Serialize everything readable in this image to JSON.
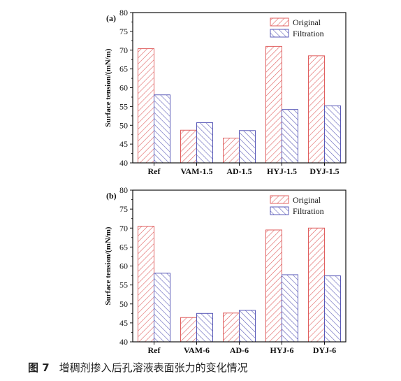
{
  "caption": {
    "figure_number": "图 7",
    "text": "增稠剂掺入后孔溶液表面张力的变化情况"
  },
  "colors": {
    "original_stroke": "#e06060",
    "filtration_stroke": "#5a5ab8",
    "axis": "#111111"
  },
  "chart_data": [
    {
      "type": "bar",
      "panel_label": "(a)",
      "categories": [
        "Ref",
        "VAM-1.5",
        "AD-1.5",
        "HYJ-1.5",
        "DYJ-1.5"
      ],
      "series": [
        {
          "name": "Original",
          "values": [
            70.4,
            48.7,
            46.6,
            71.0,
            68.5
          ]
        },
        {
          "name": "Filtration",
          "values": [
            58.1,
            50.7,
            48.6,
            54.2,
            55.2
          ]
        }
      ],
      "xlabel": "",
      "ylabel": "Surface tension/(mN/m)",
      "ylim": [
        40,
        80
      ],
      "yticks": [
        "40",
        "45",
        "50",
        "55",
        "60",
        "65",
        "70",
        "75",
        "80"
      ],
      "legend_position": "top-right",
      "grid": false
    },
    {
      "type": "bar",
      "panel_label": "(b)",
      "categories": [
        "Ref",
        "VAM-6",
        "AD-6",
        "HYJ-6",
        "DYJ-6"
      ],
      "series": [
        {
          "name": "Original",
          "values": [
            70.5,
            46.4,
            47.6,
            69.5,
            70.0
          ]
        },
        {
          "name": "Filtration",
          "values": [
            58.1,
            47.5,
            48.3,
            57.7,
            57.4
          ]
        }
      ],
      "xlabel": "",
      "ylabel": "Surface tension/(mN/m)",
      "ylim": [
        40,
        80
      ],
      "yticks": [
        "40",
        "45",
        "50",
        "55",
        "60",
        "65",
        "70",
        "75",
        "80"
      ],
      "legend_position": "top-right",
      "grid": false
    }
  ]
}
